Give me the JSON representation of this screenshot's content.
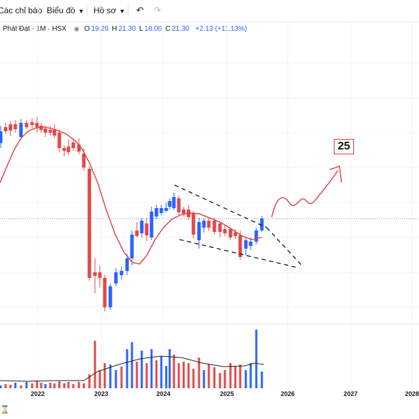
{
  "toolbar": {
    "indicators_label": "Các chỉ báo",
    "chart_label": "Biểu đồ",
    "profile_label": "Hồ sơ",
    "undo_icon": "undo-icon",
    "redo_icon": "redo-icon"
  },
  "legend": {
    "symbol": "Phát Đạt · 1M · HSX",
    "o_label": "O",
    "o_value": "19.26",
    "h_label": "H",
    "h_value": "21.30",
    "l_label": "L",
    "l_value": "18.00",
    "c_label": "C",
    "c_value": "21.30",
    "change": "+2.13 (+11.13%)"
  },
  "annotation": {
    "target_label": "25"
  },
  "colors": {
    "up": "#2962ff",
    "down": "#e04848",
    "ma": "#e03c3c",
    "grid": "#f2f3f6",
    "price_line": "#7b7fe0"
  },
  "chart_data": {
    "type": "candlestick",
    "interval": "1M",
    "xaxis_ticks": [
      "2022",
      "2023",
      "2024",
      "2025",
      "2026",
      "2027",
      "2028"
    ],
    "last_close": 21.3,
    "volume_panel": true
  }
}
